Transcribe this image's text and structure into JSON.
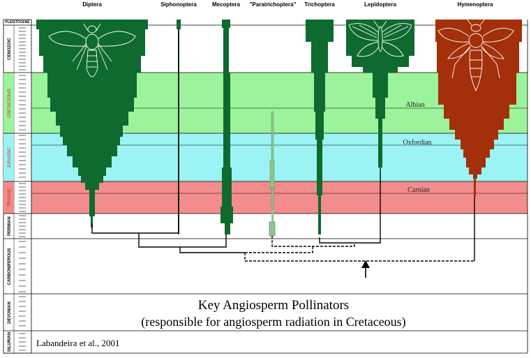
{
  "taxa": [
    {
      "name": "Diptera"
    },
    {
      "name": "Siphonoptera"
    },
    {
      "name": "Mecoptera"
    },
    {
      "name": "\"Paratrichoptera\""
    },
    {
      "name": "Trichoptera"
    },
    {
      "name": "Lepidoptera"
    },
    {
      "name": "Hymenoptera"
    }
  ],
  "periods": [
    {
      "name": "PLEISTOCENE"
    },
    {
      "name": "CENOZOIC"
    },
    {
      "name": "CRETACEOUS"
    },
    {
      "name": "JURASSIC"
    },
    {
      "name": "TRIASSIC"
    },
    {
      "name": "PERMIAN"
    },
    {
      "name": "CARBONIFEROUS"
    },
    {
      "name": "DEVONIAN"
    },
    {
      "name": "SILURIAN"
    }
  ],
  "stages": [
    {
      "name": "Albian"
    },
    {
      "name": "Oxfordian"
    },
    {
      "name": "Carnian"
    }
  ],
  "title_line1": "Key Angiosperm Pollinators",
  "title_line2": "(responsible for angiosperm radiation in Cretaceous)",
  "citation": "Labandeira et al., 2001",
  "colors": {
    "green_band": "#9cf39c",
    "cyan_band": "#9cf3f3",
    "red_band": "#f38c8c",
    "insect_green": "#0e6a2e",
    "insect_light_green": "#8fc48f",
    "hymenoptera_brown": "#a3300a"
  }
}
